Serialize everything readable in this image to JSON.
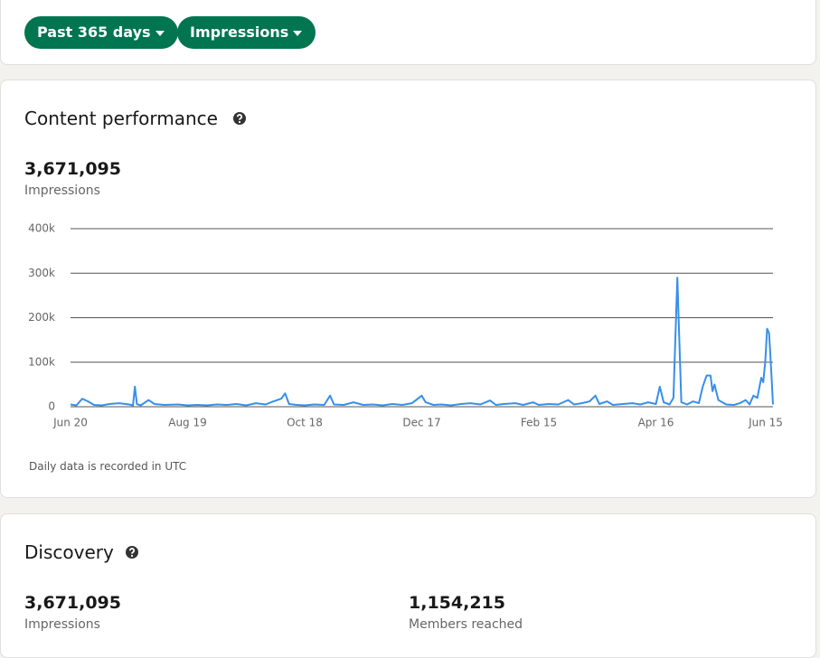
{
  "filters": [
    "Past 365 days",
    "Impressions"
  ],
  "content_performance": {
    "title": "Content performance",
    "total": "3,671,095",
    "total_label": "Impressions",
    "note": "Daily data is recorded in UTC"
  },
  "chart_data": {
    "type": "line",
    "x": [
      0,
      3,
      6,
      9,
      12,
      16,
      20,
      25,
      30,
      32,
      33,
      34,
      36,
      40,
      43,
      48,
      55,
      60,
      65,
      70,
      75,
      80,
      85,
      90,
      95,
      100,
      104,
      108,
      110,
      112,
      116,
      120,
      125,
      130,
      133,
      135,
      140,
      145,
      150,
      155,
      160,
      165,
      170,
      175,
      178,
      180,
      182,
      186,
      190,
      195,
      200,
      205,
      210,
      215,
      218,
      222,
      228,
      232,
      237,
      240,
      245,
      250,
      255,
      258,
      262,
      266,
      269,
      271,
      275,
      278,
      283,
      288,
      292,
      296,
      300,
      302,
      304,
      307,
      309,
      311,
      313,
      316,
      319,
      322,
      324,
      326,
      328,
      329,
      330,
      332,
      336,
      340,
      343,
      346,
      348,
      350,
      352,
      354,
      355,
      356,
      357,
      358,
      359,
      360
    ],
    "series": [
      {
        "name": "Impressions",
        "color": "#378fe9",
        "values": [
          5000,
          3000,
          18000,
          12000,
          4000,
          3000,
          6000,
          8000,
          5000,
          3000,
          45000,
          6000,
          3000,
          15000,
          6000,
          4000,
          5000,
          3000,
          4000,
          3000,
          5000,
          4000,
          6000,
          3000,
          8000,
          5000,
          12000,
          18000,
          30000,
          6000,
          4000,
          3000,
          5000,
          4000,
          25000,
          5000,
          4000,
          10000,
          4000,
          5000,
          3000,
          6000,
          4000,
          8000,
          18000,
          25000,
          10000,
          4000,
          5000,
          3000,
          6000,
          8000,
          5000,
          14000,
          4000,
          6000,
          8000,
          4000,
          10000,
          4000,
          6000,
          5000,
          15000,
          5000,
          8000,
          12000,
          25000,
          6000,
          12000,
          4000,
          6000,
          8000,
          5000,
          10000,
          6000,
          45000,
          10000,
          5000,
          20000,
          290000,
          10000,
          5000,
          12000,
          8000,
          45000,
          70000,
          70000,
          35000,
          50000,
          15000,
          5000,
          4000,
          8000,
          15000,
          5000,
          25000,
          20000,
          65000,
          55000,
          100000,
          175000,
          165000,
          90000,
          5000
        ]
      }
    ],
    "xlim": [
      0,
      360
    ],
    "xticks": [
      {
        "value": 0,
        "label": "Jun 20"
      },
      {
        "value": 60,
        "label": "Aug 19"
      },
      {
        "value": 120,
        "label": "Oct 18"
      },
      {
        "value": 180,
        "label": "Dec 17"
      },
      {
        "value": 240,
        "label": "Feb 15"
      },
      {
        "value": 300,
        "label": "Apr 16"
      },
      {
        "value": 360,
        "label": "Jun 15"
      }
    ],
    "ylim": [
      0,
      400000
    ],
    "yticks": [
      {
        "value": 0,
        "label": "0"
      },
      {
        "value": 100000,
        "label": "100k"
      },
      {
        "value": 200000,
        "label": "200k"
      },
      {
        "value": 300000,
        "label": "300k"
      },
      {
        "value": 400000,
        "label": "400k"
      }
    ],
    "grid": true
  },
  "discovery": {
    "title": "Discovery",
    "metrics": [
      {
        "value": "3,671,095",
        "label": "Impressions"
      },
      {
        "value": "1,154,215",
        "label": "Members reached"
      }
    ]
  }
}
